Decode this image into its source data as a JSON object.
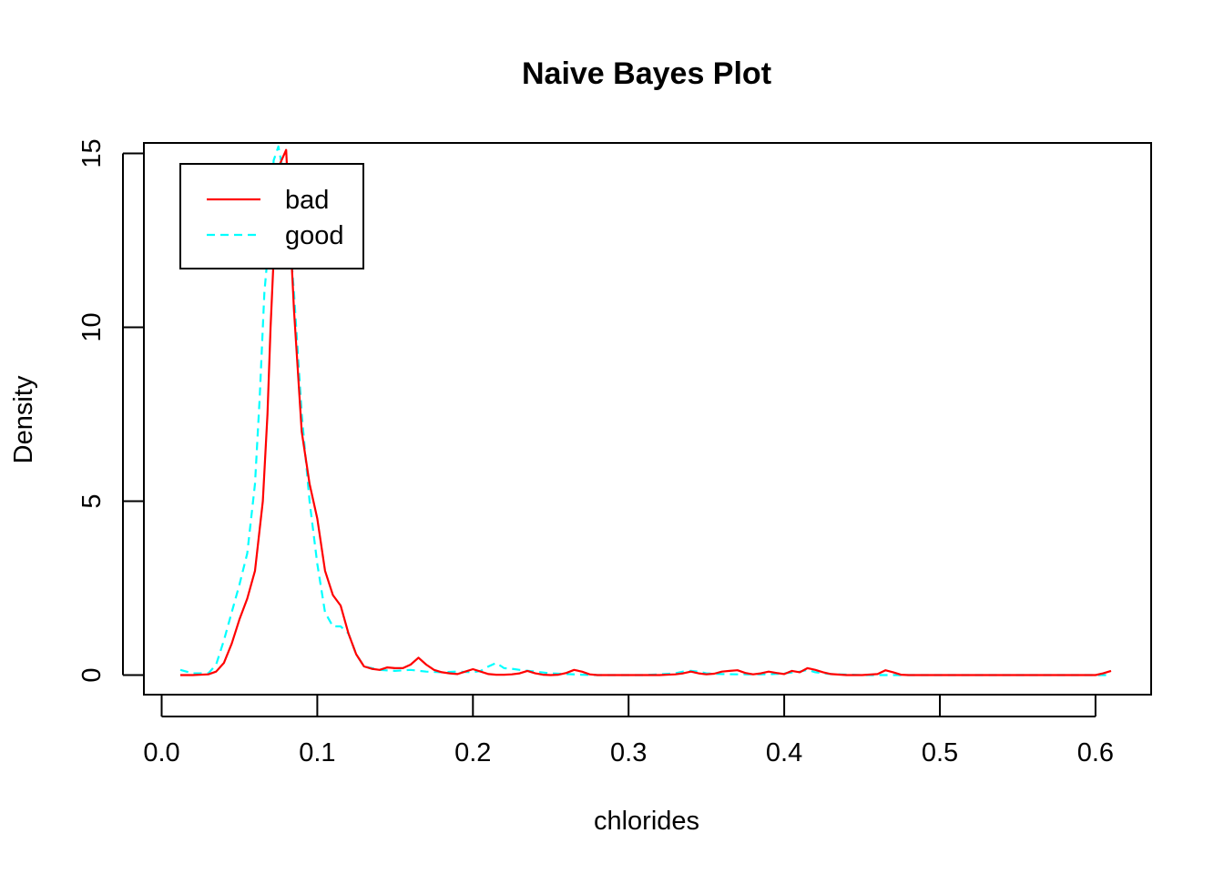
{
  "chart_data": {
    "type": "line",
    "title": "Naive Bayes Plot",
    "xlabel": "chlorides",
    "ylabel": "Density",
    "xlim": [
      0.0,
      0.63
    ],
    "ylim": [
      0,
      15
    ],
    "xticks": [
      0.0,
      0.1,
      0.2,
      0.3,
      0.4,
      0.5,
      0.6
    ],
    "xtick_labels": [
      "0.0",
      "0.1",
      "0.2",
      "0.3",
      "0.4",
      "0.5",
      "0.6"
    ],
    "yticks": [
      0,
      5,
      10,
      15
    ],
    "ytick_labels": [
      "0",
      "5",
      "10",
      "15"
    ],
    "legend_position": "top-left",
    "series": [
      {
        "name": "bad",
        "color": "#ff0000",
        "dash": "solid",
        "x": [
          0.012,
          0.02,
          0.03,
          0.035,
          0.04,
          0.045,
          0.05,
          0.055,
          0.06,
          0.065,
          0.068,
          0.07,
          0.072,
          0.075,
          0.08,
          0.085,
          0.09,
          0.095,
          0.1,
          0.105,
          0.11,
          0.115,
          0.12,
          0.125,
          0.13,
          0.135,
          0.14,
          0.145,
          0.15,
          0.155,
          0.16,
          0.165,
          0.17,
          0.175,
          0.18,
          0.185,
          0.19,
          0.195,
          0.2,
          0.205,
          0.21,
          0.215,
          0.22,
          0.225,
          0.23,
          0.235,
          0.24,
          0.245,
          0.25,
          0.255,
          0.26,
          0.265,
          0.27,
          0.275,
          0.28,
          0.29,
          0.3,
          0.31,
          0.32,
          0.33,
          0.335,
          0.34,
          0.345,
          0.35,
          0.355,
          0.36,
          0.365,
          0.37,
          0.375,
          0.38,
          0.385,
          0.39,
          0.395,
          0.4,
          0.405,
          0.41,
          0.415,
          0.42,
          0.425,
          0.43,
          0.44,
          0.45,
          0.46,
          0.465,
          0.47,
          0.475,
          0.48,
          0.5,
          0.52,
          0.54,
          0.56,
          0.58,
          0.6,
          0.605,
          0.61
        ],
        "y": [
          0.0,
          0.0,
          0.02,
          0.1,
          0.35,
          0.9,
          1.6,
          2.2,
          3.0,
          5.0,
          7.5,
          10.0,
          12.0,
          14.6,
          15.1,
          10.5,
          7.0,
          5.5,
          4.5,
          3.0,
          2.3,
          2.0,
          1.2,
          0.6,
          0.25,
          0.18,
          0.15,
          0.22,
          0.2,
          0.2,
          0.3,
          0.5,
          0.3,
          0.15,
          0.08,
          0.05,
          0.03,
          0.1,
          0.17,
          0.1,
          0.03,
          0.01,
          0.01,
          0.02,
          0.05,
          0.12,
          0.05,
          0.01,
          0.0,
          0.01,
          0.06,
          0.15,
          0.1,
          0.02,
          0.0,
          0.0,
          0.0,
          0.0,
          0.0,
          0.02,
          0.05,
          0.1,
          0.05,
          0.02,
          0.04,
          0.1,
          0.12,
          0.14,
          0.06,
          0.02,
          0.05,
          0.1,
          0.06,
          0.03,
          0.12,
          0.08,
          0.2,
          0.15,
          0.08,
          0.03,
          0.0,
          0.0,
          0.03,
          0.14,
          0.08,
          0.01,
          0.0,
          0.0,
          0.0,
          0.0,
          0.0,
          0.0,
          0.0,
          0.05,
          0.12
        ]
      },
      {
        "name": "good",
        "color": "#00ffff",
        "dash": "dashed",
        "x": [
          0.012,
          0.02,
          0.025,
          0.03,
          0.035,
          0.04,
          0.045,
          0.05,
          0.055,
          0.06,
          0.063,
          0.066,
          0.069,
          0.072,
          0.075,
          0.08,
          0.085,
          0.09,
          0.095,
          0.1,
          0.105,
          0.11,
          0.115,
          0.12,
          0.125,
          0.13,
          0.14,
          0.15,
          0.16,
          0.17,
          0.18,
          0.19,
          0.2,
          0.205,
          0.21,
          0.215,
          0.22,
          0.225,
          0.23,
          0.24,
          0.25,
          0.26,
          0.27,
          0.28,
          0.29,
          0.3,
          0.31,
          0.32,
          0.33,
          0.335,
          0.34,
          0.345,
          0.35,
          0.36,
          0.37,
          0.38,
          0.39,
          0.4,
          0.41,
          0.415,
          0.42,
          0.43,
          0.45,
          0.5,
          0.55,
          0.6,
          0.61
        ],
        "y": [
          0.15,
          0.05,
          0.05,
          0.05,
          0.3,
          1.0,
          1.8,
          2.6,
          3.5,
          5.5,
          8.0,
          11.0,
          12.5,
          14.8,
          15.2,
          14.0,
          11.0,
          7.5,
          5.0,
          3.2,
          1.8,
          1.4,
          1.4,
          1.2,
          0.6,
          0.25,
          0.15,
          0.12,
          0.15,
          0.1,
          0.08,
          0.1,
          0.08,
          0.12,
          0.25,
          0.35,
          0.2,
          0.18,
          0.15,
          0.1,
          0.05,
          0.03,
          0.01,
          0.0,
          0.0,
          0.0,
          0.0,
          0.02,
          0.05,
          0.1,
          0.12,
          0.1,
          0.05,
          0.03,
          0.02,
          0.02,
          0.02,
          0.05,
          0.1,
          0.15,
          0.08,
          0.03,
          0.0,
          0.0,
          0.0,
          0.0,
          0.0
        ]
      }
    ]
  }
}
